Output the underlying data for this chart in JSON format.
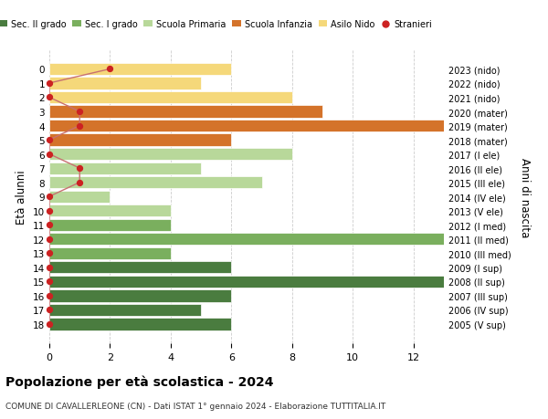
{
  "ages": [
    18,
    17,
    16,
    15,
    14,
    13,
    12,
    11,
    10,
    9,
    8,
    7,
    6,
    5,
    4,
    3,
    2,
    1,
    0
  ],
  "years": [
    "2005 (V sup)",
    "2006 (IV sup)",
    "2007 (III sup)",
    "2008 (II sup)",
    "2009 (I sup)",
    "2010 (III med)",
    "2011 (II med)",
    "2012 (I med)",
    "2013 (V ele)",
    "2014 (IV ele)",
    "2015 (III ele)",
    "2016 (II ele)",
    "2017 (I ele)",
    "2018 (mater)",
    "2019 (mater)",
    "2020 (mater)",
    "2021 (nido)",
    "2022 (nido)",
    "2023 (nido)"
  ],
  "bar_values": [
    6,
    5,
    6,
    13,
    6,
    4,
    13,
    4,
    4,
    2,
    7,
    5,
    8,
    6,
    13,
    9,
    8,
    5,
    6
  ],
  "bar_colors": [
    "#4a7c3f",
    "#4a7c3f",
    "#4a7c3f",
    "#4a7c3f",
    "#4a7c3f",
    "#7aaf5e",
    "#7aaf5e",
    "#7aaf5e",
    "#b8d89a",
    "#b8d89a",
    "#b8d89a",
    "#b8d89a",
    "#b8d89a",
    "#d4732a",
    "#d4732a",
    "#d4732a",
    "#f5d87a",
    "#f5d87a",
    "#f5d87a"
  ],
  "stranieri_values": [
    0,
    0,
    0,
    0,
    0,
    0,
    0,
    0,
    0,
    0,
    1,
    1,
    0,
    0,
    1,
    1,
    0,
    0,
    2
  ],
  "title": "Popolazione per età scolastica - 2024",
  "subtitle": "COMUNE DI CAVALLERLEONE (CN) - Dati ISTAT 1° gennaio 2024 - Elaborazione TUTTITALIA.IT",
  "ylabel": "Età alunni",
  "ylabel2": "Anni di nascita",
  "xlim": [
    0,
    13
  ],
  "xticks": [
    0,
    2,
    4,
    6,
    8,
    10,
    12
  ],
  "legend_labels": [
    "Sec. II grado",
    "Sec. I grado",
    "Scuola Primaria",
    "Scuola Infanzia",
    "Asilo Nido",
    "Stranieri"
  ],
  "legend_colors": [
    "#4a7c3f",
    "#7aaf5e",
    "#b8d89a",
    "#d4732a",
    "#f5d87a",
    "#cc2222"
  ],
  "stranieri_color": "#cc2222",
  "stranieri_line_color": "#c87070",
  "bg_color": "#ffffff",
  "grid_color": "#cccccc"
}
